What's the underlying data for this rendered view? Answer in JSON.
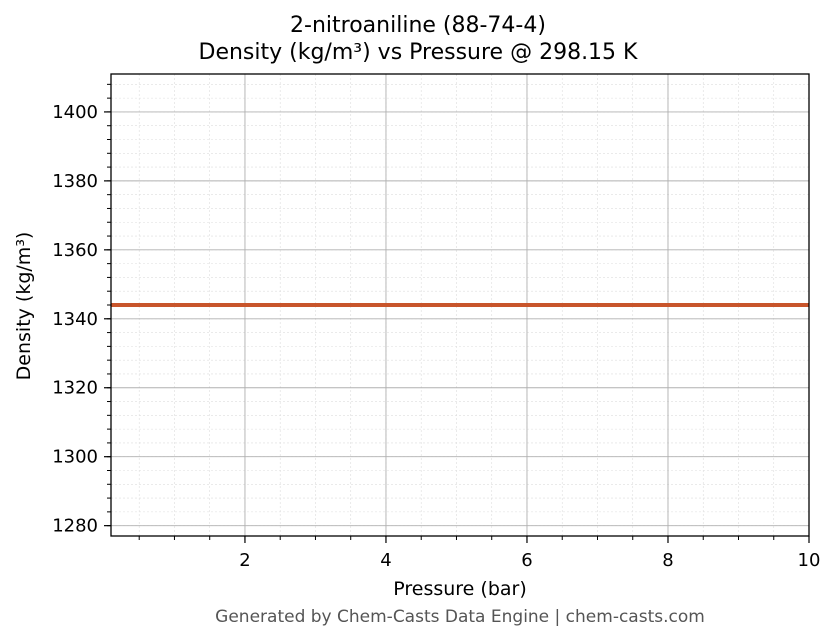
{
  "chart_data": {
    "type": "line",
    "title": "2-nitroaniline (88-74-4)",
    "subtitle": "Density (kg/m³) vs Pressure @ 298.15 K",
    "xlabel": "Pressure (bar)",
    "ylabel": "Density (kg/m³)",
    "xlim": [
      0.1,
      10
    ],
    "ylim": [
      1277,
      1411
    ],
    "x_ticks": [
      2,
      4,
      6,
      8,
      10
    ],
    "y_ticks": [
      1280,
      1300,
      1320,
      1340,
      1360,
      1380,
      1400
    ],
    "grid": true,
    "series": [
      {
        "color": "#c8552b",
        "x": [
          0.1,
          1,
          2,
          3,
          4,
          5,
          6,
          7,
          8,
          9,
          10
        ],
        "values": [
          1344,
          1344,
          1344,
          1344,
          1344,
          1344,
          1344,
          1344,
          1344,
          1344,
          1344
        ]
      }
    ]
  },
  "footer": "Generated by Chem-Casts Data Engine | chem-casts.com"
}
